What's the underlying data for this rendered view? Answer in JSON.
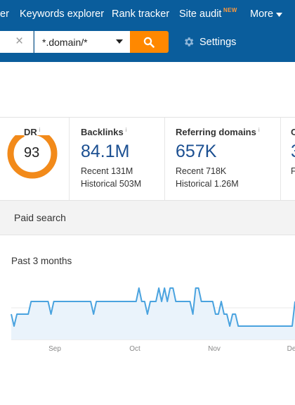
{
  "nav": {
    "items": [
      "er",
      "Keywords explorer",
      "Rank tracker",
      "Site audit",
      "More"
    ],
    "new_badge": "NEW"
  },
  "search": {
    "mode": "*.domain/*",
    "settings_label": "Settings"
  },
  "metrics": {
    "dr": {
      "label": "DR",
      "info": "i",
      "value": "93",
      "score": 93
    },
    "backlinks": {
      "label": "Backlinks",
      "info": "i",
      "value": "84.1M",
      "recent": "Recent 131M",
      "historical": "Historical 503M"
    },
    "referring": {
      "label": "Referring domains",
      "info": "i",
      "value": "657K",
      "recent": "Recent 718K",
      "historical": "Historical 1.26M"
    },
    "partial": {
      "label": "O",
      "value": "3",
      "sub": "F"
    }
  },
  "tab": {
    "label": "Paid search"
  },
  "chart": {
    "title": "Past 3 months"
  },
  "chart_data": {
    "type": "area",
    "title": "Past 3 months",
    "x_tick_labels": [
      "Sep",
      "Oct",
      "Nov",
      "De"
    ],
    "series": [
      {
        "values": [
          2,
          1,
          2,
          2,
          2,
          2,
          2,
          3,
          3,
          3,
          3,
          3,
          3,
          3,
          2,
          3,
          3,
          3,
          3,
          3,
          3,
          3,
          3,
          3,
          3,
          3,
          3,
          3,
          3,
          2,
          3,
          3,
          3,
          3,
          3,
          3,
          3,
          3,
          3,
          3,
          3,
          3,
          3,
          3,
          3,
          4,
          3,
          3,
          2,
          3,
          3,
          3,
          4,
          3,
          4,
          3,
          4,
          4,
          3,
          3,
          3,
          3,
          3,
          3,
          2,
          4,
          4,
          3,
          3,
          3,
          3,
          3,
          2,
          2,
          3,
          2,
          2,
          1,
          2,
          2,
          1,
          1,
          1,
          1,
          1,
          1,
          1,
          1,
          1,
          1,
          1,
          1,
          1,
          1,
          1,
          1,
          1,
          1,
          1,
          1,
          3
        ],
        "color": "#4aa3df"
      }
    ],
    "grid": true,
    "colors": {
      "line": "#4aa3df",
      "fill": "#eaf3fb"
    }
  },
  "colors": {
    "nav_bg": "#0a5d9c",
    "accent": "#ff8800",
    "metric_value": "#1b4f91",
    "dr_ring": "#f28a1a"
  },
  "icons": {
    "clear": "close-icon",
    "search": "search-icon",
    "settings": "gear-icon",
    "more": "caret-down-icon"
  }
}
